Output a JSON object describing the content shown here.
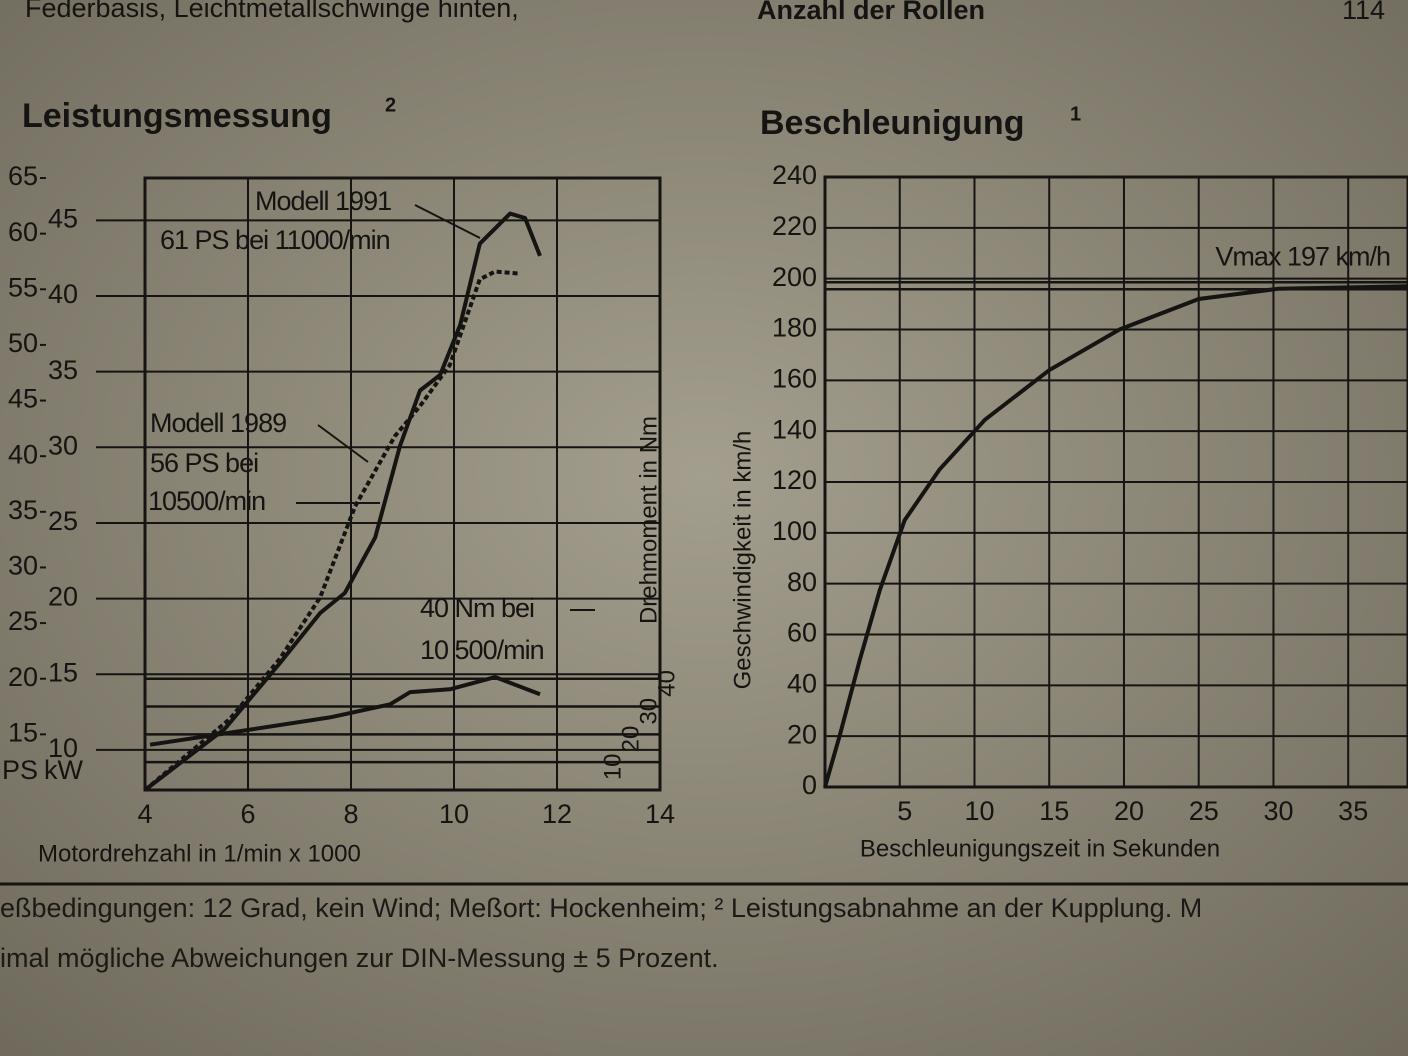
{
  "header": {
    "left": "Federbasis, Leichtmetallschwinge hinten,",
    "center": "Anzahl der Rollen",
    "page": "114"
  },
  "chart_data": [
    {
      "type": "line",
      "title": "Leistungsmessung",
      "title_note": "2",
      "xlabel": "Motordrehzahl in 1/min x 1000",
      "ylabel": "PS",
      "y2label": "kW",
      "y3label": "Drehmoment in Nm",
      "xlim": [
        4,
        14
      ],
      "xticks": [
        4,
        6,
        8,
        10,
        12,
        14
      ],
      "ylim": [
        10,
        65
      ],
      "yticks": [
        15,
        20,
        25,
        30,
        35,
        40,
        45,
        50,
        55,
        60,
        65
      ],
      "y2lim": [
        7.35,
        47.8
      ],
      "y2ticks": [
        10,
        15,
        20,
        25,
        30,
        35,
        40,
        45
      ],
      "y3lim": [
        0,
        220
      ],
      "y3ticks": [
        10,
        20,
        30,
        40
      ],
      "grid": true,
      "series": [
        {
          "name": "Modell 1991",
          "color": "#161412",
          "style": "solid",
          "axis": "y",
          "x": [
            4,
            5.55,
            6.62,
            7.4,
            7.88,
            8.47,
            8.95,
            9.34,
            9.73,
            10.12,
            10.5,
            11.09,
            11.38,
            11.67
          ],
          "values": [
            10,
            15.5,
            21.4,
            25.9,
            27.7,
            32.7,
            40.9,
            45.9,
            47.3,
            51.8,
            59.1,
            61.8,
            61.4,
            58
          ]
        },
        {
          "name": "Modell 1989",
          "color": "#161412",
          "style": "dashed",
          "axis": "y",
          "x": [
            4,
            5.65,
            6.62,
            7.4,
            8.08,
            8.85,
            9.34,
            9.92,
            10.5,
            10.8,
            11.28
          ],
          "values": [
            10,
            16.4,
            21.8,
            27.3,
            35.5,
            41.8,
            44.5,
            48.2,
            55.9,
            56.6,
            56.4
          ]
        },
        {
          "color": "#161412",
          "style": "solid",
          "axis": "y3",
          "x": [
            4.1,
            6.04,
            7.59,
            8.76,
            9.15,
            9.92,
            10.8,
            11.67
          ],
          "values": [
            16.3,
            21.7,
            26.1,
            30.8,
            35.2,
            36.2,
            40.6,
            34.4
          ]
        }
      ],
      "annotations": [
        "61 PS bei 11000/min",
        "56 PS bei",
        "10500/min",
        "40 Nm bei",
        "10 500/min"
      ]
    },
    {
      "type": "line",
      "title": "Beschleunigung",
      "title_note": "1",
      "xlabel": "Beschleunigungszeit in Sekunden",
      "ylabel": "Geschwindigkeit in km/h",
      "xlim": [
        0,
        39
      ],
      "xticks": [
        5,
        10,
        15,
        20,
        25,
        30,
        35
      ],
      "ylim": [
        0,
        240
      ],
      "yticks": [
        0,
        20,
        40,
        60,
        80,
        100,
        120,
        140,
        160,
        180,
        200,
        220,
        240
      ],
      "grid": true,
      "series": [
        {
          "color": "#161412",
          "style": "solid",
          "x": [
            0,
            1,
            2.33,
            3.67,
            5.33,
            7.67,
            10.7,
            15,
            19.7,
            25,
            30.3,
            39
          ],
          "values": [
            0,
            20.5,
            50,
            77.6,
            105,
            125,
            144.5,
            164,
            180,
            192,
            196,
            197
          ]
        }
      ],
      "hline": {
        "value": 197,
        "label": "Vmax 197 km/h"
      }
    }
  ],
  "footer": [
    "eßbedingungen: 12 Grad, kein Wind; Meßort: Hockenheim; ² Leistungsabnahme an der Kupplung. M",
    "imal mögliche Abweichungen zur DIN-Messung ± 5 Prozent."
  ]
}
